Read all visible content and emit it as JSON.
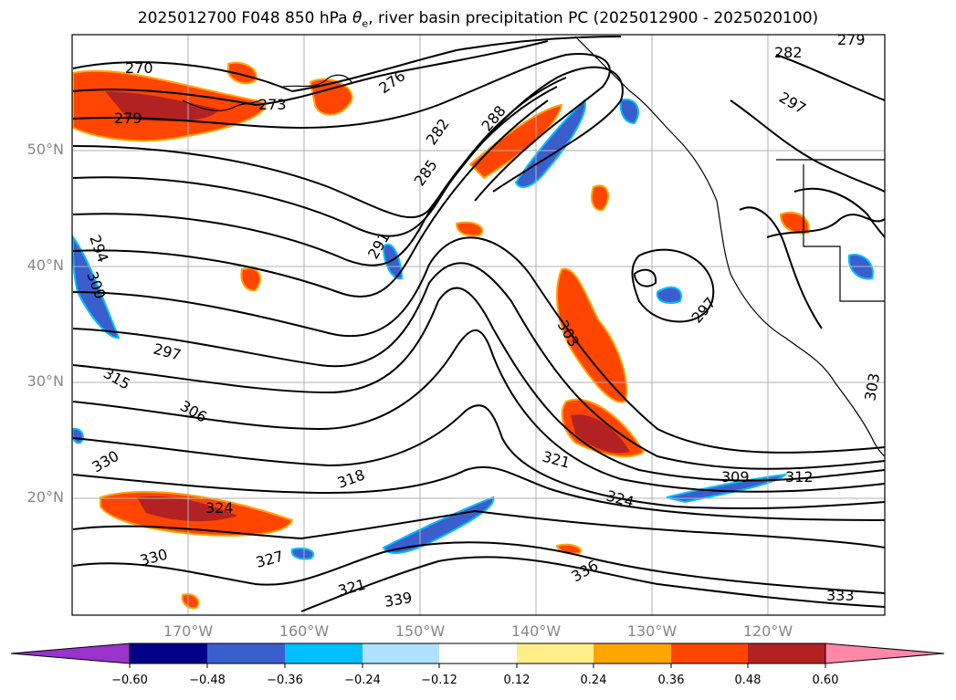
{
  "title_prefix": "2025012700 F048 850 hPa ",
  "title_symbol": "θ",
  "title_subscript": "e",
  "title_suffix": ", river basin precipitation PC (2025012900 - 2025020100)",
  "lat_labels": [
    "50°N",
    "40°N",
    "30°N",
    "20°N"
  ],
  "lon_labels": [
    "170°W",
    "160°W",
    "150°W",
    "140°W",
    "130°W",
    "120°W"
  ],
  "contour_labels": [
    "270",
    "276",
    "273",
    "279",
    "282",
    "282",
    "285",
    "288",
    "291",
    "294",
    "297",
    "297",
    "300",
    "303",
    "306",
    "309",
    "312",
    "315",
    "318",
    "321",
    "321",
    "324",
    "324",
    "327",
    "330",
    "330",
    "333",
    "336",
    "339",
    "279",
    "297",
    "303"
  ],
  "colorbar": {
    "ticks": [
      "−0.60",
      "−0.48",
      "−0.36",
      "−0.24",
      "−0.12",
      "0.12",
      "0.24",
      "0.36",
      "0.48",
      "0.60"
    ],
    "colors": [
      "#9933cc",
      "#000088",
      "#3a5fcd",
      "#00bfff",
      "#b0e2ff",
      "#ffffff",
      "#ffee88",
      "#ffa500",
      "#ff4500",
      "#b22222",
      "#ff88aa"
    ]
  }
}
